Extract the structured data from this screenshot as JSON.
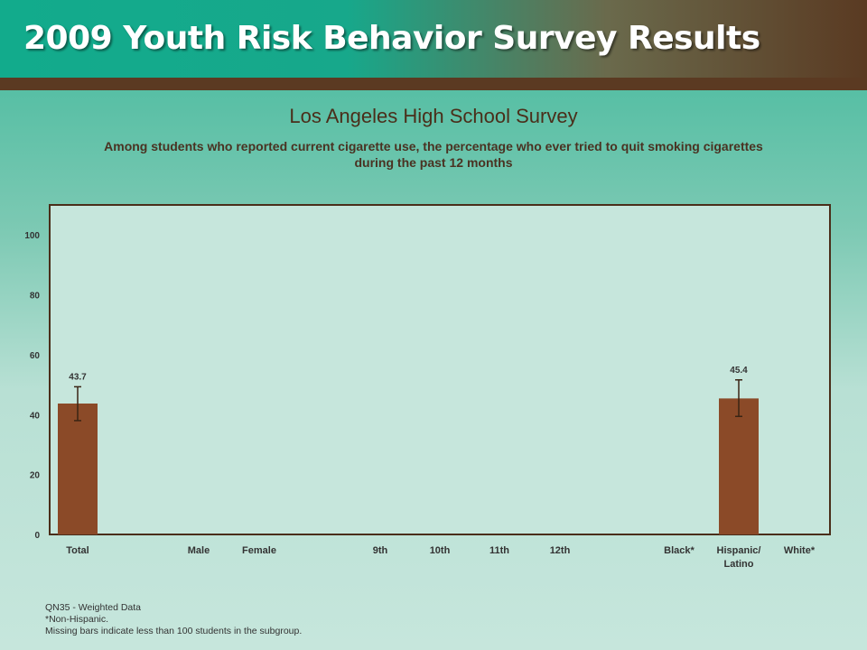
{
  "banner": {
    "title": "2009 Youth Risk Behavior Survey Results"
  },
  "chart_data": {
    "type": "bar",
    "title": "Los Angeles High School Survey",
    "subtitle": "Among students who reported current cigarette use, the percentage who ever tried to quit smoking cigarettes during the past 12 months",
    "categories": [
      "Total",
      "Male",
      "Female",
      "9th",
      "10th",
      "11th",
      "12th",
      "Black*",
      "Hispanic/\nLatino",
      "White*"
    ],
    "groups": [
      [
        "Total"
      ],
      [
        "Male",
        "Female"
      ],
      [
        "9th",
        "10th",
        "11th",
        "12th"
      ],
      [
        "Black*",
        "Hispanic/\nLatino",
        "White*"
      ]
    ],
    "values": [
      43.7,
      null,
      null,
      null,
      null,
      null,
      null,
      null,
      45.4,
      null
    ],
    "error_low": [
      38.0,
      null,
      null,
      null,
      null,
      null,
      null,
      null,
      39.4,
      null
    ],
    "error_high": [
      49.3,
      null,
      null,
      null,
      null,
      null,
      null,
      null,
      51.6,
      null
    ],
    "ylim": [
      0,
      110
    ],
    "yticks": [
      0,
      20,
      40,
      60,
      80,
      100
    ],
    "bar_color": "#8b4a28",
    "xlabel": "",
    "ylabel": ""
  },
  "footnotes": [
    "QN35 - Weighted Data",
    "*Non-Hispanic.",
    "Missing bars indicate less than 100 students in the subgroup."
  ]
}
